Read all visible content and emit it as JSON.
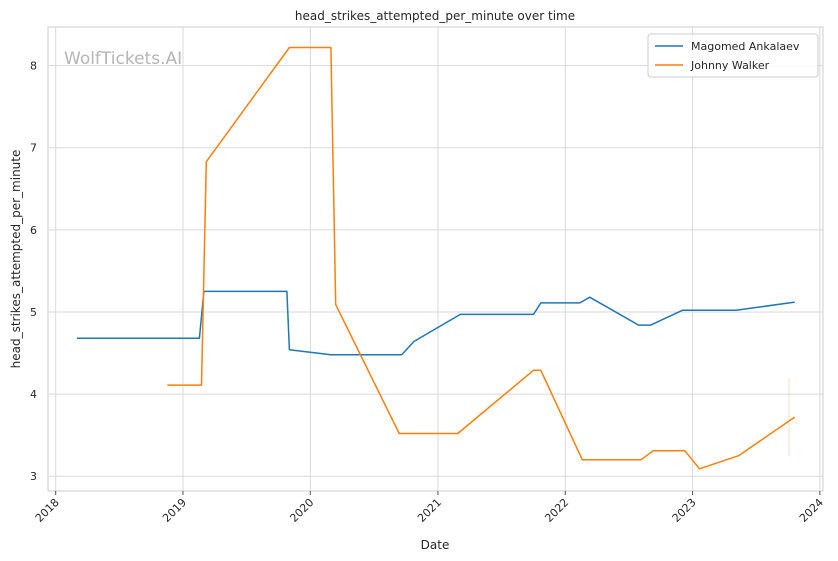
{
  "chart_data": {
    "type": "line",
    "title": "head_strikes_attempted_per_minute over time",
    "xlabel": "Date",
    "ylabel": "head_strikes_attempted_per_minute",
    "watermark": "WolfTickets.AI",
    "xlim": [
      "2017-12-10",
      "2024-01-10"
    ],
    "ylim": [
      2.82,
      8.47
    ],
    "x_ticks": [
      "2018-01-01",
      "2019-01-01",
      "2020-01-01",
      "2021-01-01",
      "2022-01-01",
      "2023-01-01",
      "2024-01-01"
    ],
    "x_tick_labels": [
      "2018",
      "2019",
      "2020",
      "2021",
      "2022",
      "2023",
      "2024"
    ],
    "y_ticks": [
      3,
      4,
      5,
      6,
      7,
      8
    ],
    "grid": true,
    "legend_position": "top-right",
    "series": [
      {
        "name": "Magomed Ankalaev",
        "color": "#1f77b4",
        "points": [
          [
            "2018-03-03",
            4.68
          ],
          [
            "2019-02-17",
            4.68
          ],
          [
            "2019-03-02",
            5.25
          ],
          [
            "2019-10-26",
            5.25
          ],
          [
            "2019-11-02",
            4.54
          ],
          [
            "2020-02-29",
            4.48
          ],
          [
            "2020-09-19",
            4.48
          ],
          [
            "2020-10-24",
            4.64
          ],
          [
            "2021-03-06",
            4.97
          ],
          [
            "2021-10-02",
            4.97
          ],
          [
            "2021-10-23",
            5.11
          ],
          [
            "2022-02-12",
            5.11
          ],
          [
            "2022-03-12",
            5.18
          ],
          [
            "2022-07-30",
            4.84
          ],
          [
            "2022-09-03",
            4.84
          ],
          [
            "2022-12-03",
            5.02
          ],
          [
            "2023-05-06",
            5.02
          ],
          [
            "2023-10-21",
            5.12
          ]
        ]
      },
      {
        "name": "Johnny Walker",
        "color": "#ff7f0e",
        "points": [
          [
            "2018-11-17",
            4.11
          ],
          [
            "2019-02-23",
            4.11
          ],
          [
            "2019-03-09",
            6.83
          ],
          [
            "2019-11-02",
            8.22
          ],
          [
            "2020-02-29",
            8.22
          ],
          [
            "2020-03-14",
            5.09
          ],
          [
            "2020-09-12",
            3.52
          ],
          [
            "2021-02-27",
            3.52
          ],
          [
            "2021-10-02",
            4.29
          ],
          [
            "2021-10-23",
            4.29
          ],
          [
            "2022-02-19",
            3.2
          ],
          [
            "2022-08-06",
            3.2
          ],
          [
            "2022-09-10",
            3.31
          ],
          [
            "2022-12-10",
            3.31
          ],
          [
            "2023-01-21",
            3.09
          ],
          [
            "2023-05-13",
            3.25
          ],
          [
            "2023-10-21",
            3.72
          ]
        ]
      }
    ]
  }
}
